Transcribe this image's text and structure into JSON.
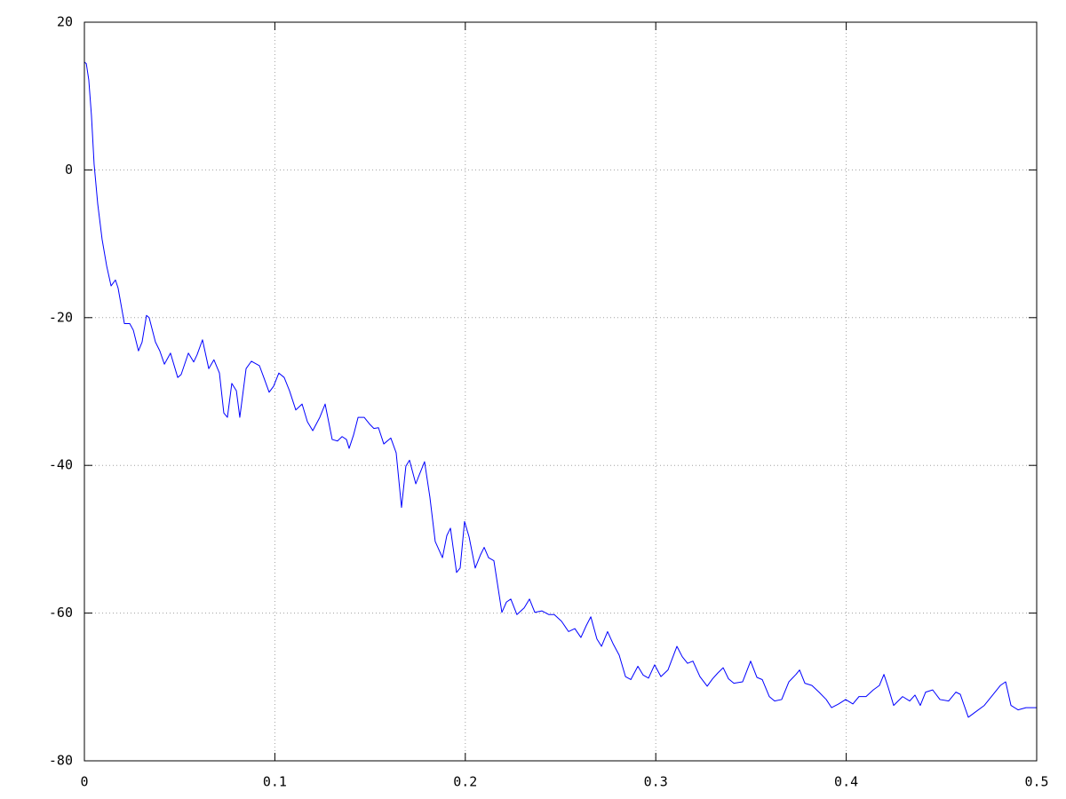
{
  "chart_data": {
    "type": "line",
    "color": "#0000ff",
    "grid": true,
    "xlim": [
      0,
      0.5
    ],
    "ylim": [
      -80,
      20
    ],
    "xticks": [
      0,
      0.1,
      0.2,
      0.3,
      0.4,
      0.5
    ],
    "yticks": [
      20,
      0,
      -20,
      -40,
      -60,
      -80
    ],
    "x": [
      0,
      0.001,
      0.0023,
      0.0037,
      0.0051,
      0.007,
      0.0093,
      0.0117,
      0.014,
      0.0163,
      0.0177,
      0.021,
      0.0238,
      0.0257,
      0.0284,
      0.0303,
      0.0326,
      0.034,
      0.0373,
      0.0396,
      0.042,
      0.0452,
      0.049,
      0.0508,
      0.0546,
      0.0574,
      0.0592,
      0.062,
      0.0653,
      0.068,
      0.0709,
      0.0732,
      0.0751,
      0.0774,
      0.0798,
      0.0816,
      0.0849,
      0.0877,
      0.0919,
      0.0942,
      0.097,
      0.0993,
      0.1021,
      0.1049,
      0.1077,
      0.111,
      0.1143,
      0.1171,
      0.1199,
      0.1236,
      0.1264,
      0.1301,
      0.1329,
      0.1353,
      0.1376,
      0.139,
      0.1413,
      0.1437,
      0.1469,
      0.1497,
      0.152,
      0.1544,
      0.1572,
      0.1609,
      0.1637,
      0.1665,
      0.1688,
      0.1707,
      0.174,
      0.1758,
      0.1786,
      0.1814,
      0.1842,
      0.188,
      0.1903,
      0.1922,
      0.1954,
      0.1973,
      0.1996,
      0.202,
      0.2052,
      0.208,
      0.2099,
      0.2122,
      0.215,
      0.2192,
      0.2216,
      0.2239,
      0.2271,
      0.2309,
      0.2337,
      0.2365,
      0.2402,
      0.2439,
      0.2467,
      0.2505,
      0.2542,
      0.2575,
      0.2607,
      0.2635,
      0.2659,
      0.2691,
      0.2715,
      0.2747,
      0.2775,
      0.2808,
      0.2841,
      0.2869,
      0.2906,
      0.2934,
      0.2962,
      0.2994,
      0.3027,
      0.3064,
      0.3111,
      0.3139,
      0.3167,
      0.3195,
      0.3232,
      0.327,
      0.3298,
      0.3326,
      0.3354,
      0.3382,
      0.341,
      0.3456,
      0.3498,
      0.3531,
      0.3559,
      0.3596,
      0.3624,
      0.3661,
      0.3699,
      0.3736,
      0.3755,
      0.3783,
      0.382,
      0.3857,
      0.3895,
      0.3923,
      0.396,
      0.3997,
      0.4035,
      0.4067,
      0.4104,
      0.4142,
      0.4174,
      0.4198,
      0.4221,
      0.4249,
      0.4296,
      0.4333,
      0.4361,
      0.4389,
      0.4417,
      0.4454,
      0.4492,
      0.4538,
      0.4576,
      0.4599,
      0.4641,
      0.4678,
      0.4725,
      0.4772,
      0.4809,
      0.4837,
      0.4865,
      0.4902,
      0.4944,
      0.5
    ],
    "values": [
      14.6,
      14.4,
      12.2,
      7.4,
      0.8,
      -4.6,
      -9.4,
      -13,
      -15.7,
      -14.9,
      -16,
      -20.8,
      -20.8,
      -21.7,
      -24.5,
      -23.3,
      -19.7,
      -20,
      -23.3,
      -24.5,
      -26.3,
      -24.8,
      -28.1,
      -27.7,
      -24.8,
      -26,
      -25,
      -23,
      -26.9,
      -25.7,
      -27.5,
      -32.9,
      -33.5,
      -28.9,
      -29.9,
      -33.5,
      -26.9,
      -25.9,
      -26.5,
      -28.1,
      -30.1,
      -29.3,
      -27.5,
      -28.1,
      -29.9,
      -32.5,
      -31.7,
      -34.1,
      -35.3,
      -33.5,
      -31.7,
      -36.5,
      -36.7,
      -36.1,
      -36.5,
      -37.7,
      -35.9,
      -33.5,
      -33.5,
      -34.4,
      -35,
      -34.9,
      -37.1,
      -36.3,
      -38.3,
      -45.7,
      -40.1,
      -39.3,
      -42.5,
      -41.3,
      -39.5,
      -44.3,
      -50.3,
      -52.5,
      -49.5,
      -48.5,
      -54.5,
      -53.9,
      -47.6,
      -49.7,
      -53.9,
      -52.1,
      -51.1,
      -52.5,
      -52.9,
      -59.9,
      -58.5,
      -58.1,
      -60.2,
      -59.3,
      -58.1,
      -59.9,
      -59.7,
      -60.2,
      -60.2,
      -61.1,
      -62.5,
      -62.1,
      -63.3,
      -61.7,
      -60.5,
      -63.5,
      -64.5,
      -62.5,
      -64.1,
      -65.7,
      -68.6,
      -69,
      -67.2,
      -68.4,
      -68.8,
      -67,
      -68.6,
      -67.7,
      -64.5,
      -65.9,
      -66.8,
      -66.5,
      -68.6,
      -69.9,
      -68.9,
      -68.1,
      -67.4,
      -68.9,
      -69.5,
      -69.3,
      -66.5,
      -68.7,
      -69,
      -71.3,
      -71.9,
      -71.7,
      -69.3,
      -68.3,
      -67.7,
      -69.5,
      -69.8,
      -70.7,
      -71.7,
      -72.8,
      -72.3,
      -71.7,
      -72.3,
      -71.3,
      -71.3,
      -70.4,
      -69.8,
      -68.3,
      -70.1,
      -72.5,
      -71.3,
      -71.9,
      -71.1,
      -72.5,
      -70.7,
      -70.4,
      -71.7,
      -71.9,
      -70.7,
      -71,
      -74.1,
      -73.4,
      -72.5,
      -71,
      -69.8,
      -69.3,
      -72.5,
      -73.1,
      -72.8,
      -72.8
    ]
  }
}
